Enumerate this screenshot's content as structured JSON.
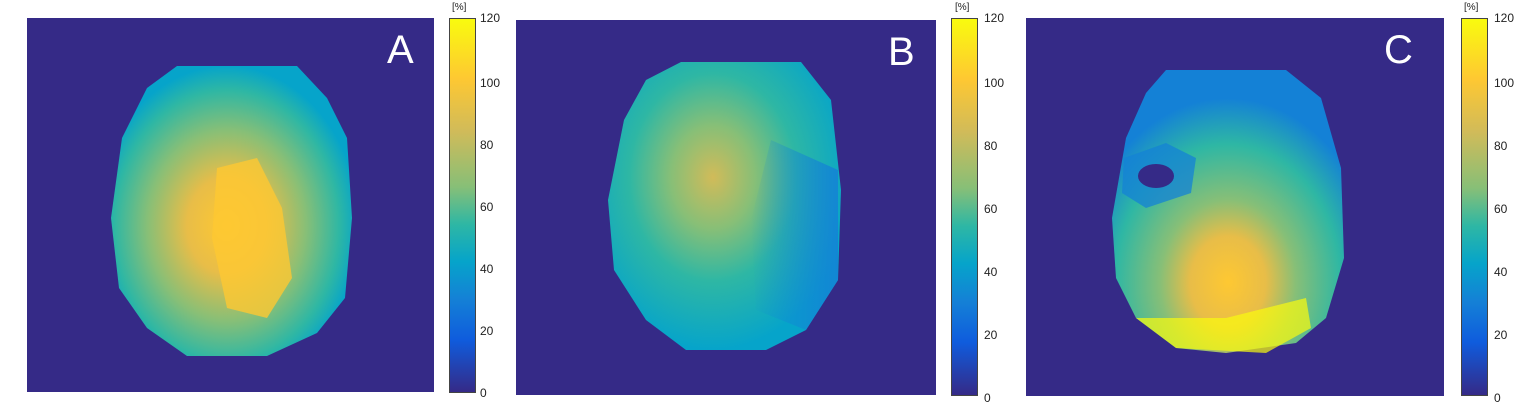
{
  "panels": [
    {
      "id": "A",
      "letter": "A",
      "colorbar": {
        "unit": "[%]",
        "ticks": [
          "120",
          "100",
          "80",
          "60",
          "40",
          "20",
          "0"
        ]
      }
    },
    {
      "id": "B",
      "letter": "B",
      "colorbar": {
        "unit": "[%]",
        "ticks": [
          "120",
          "100",
          "80",
          "60",
          "40",
          "20",
          "0"
        ]
      }
    },
    {
      "id": "C",
      "letter": "C",
      "colorbar": {
        "unit": "[%]",
        "ticks": [
          "120",
          "100",
          "80",
          "60",
          "40",
          "20",
          "0"
        ]
      }
    }
  ],
  "colormap": {
    "name": "parula",
    "range": [
      0,
      120
    ],
    "stops": [
      "#352a87",
      "#0f5cdd",
      "#1481d6",
      "#06a4ca",
      "#2eb7a4",
      "#87bf77",
      "#d1bb59",
      "#fec832",
      "#f9fb0e"
    ]
  }
}
